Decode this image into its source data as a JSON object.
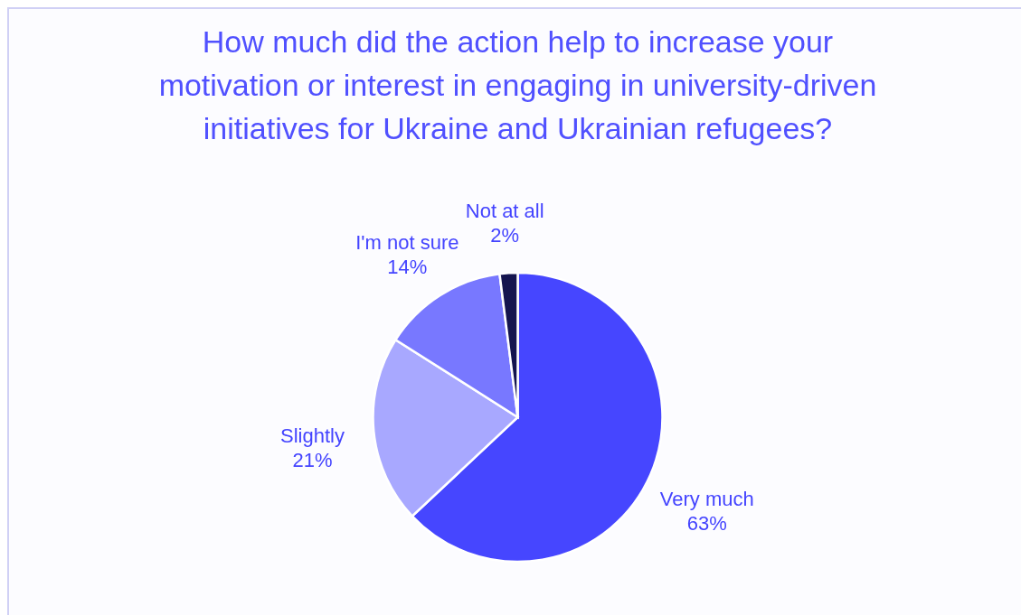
{
  "chart_data": {
    "type": "pie",
    "title": "How much did the action help to increase your motivation or interest in engaging in university-driven initiatives for Ukraine and Ukrainian refugees?",
    "categories": [
      "Very much",
      "Slightly",
      "I'm not sure",
      "Not at all"
    ],
    "values": [
      63,
      21,
      14,
      2
    ],
    "value_labels": [
      "63%",
      "21%",
      "14%",
      "2%"
    ],
    "colors": [
      "#4646ff",
      "#a8a8ff",
      "#7878ff",
      "#14144f"
    ],
    "legend": false
  }
}
